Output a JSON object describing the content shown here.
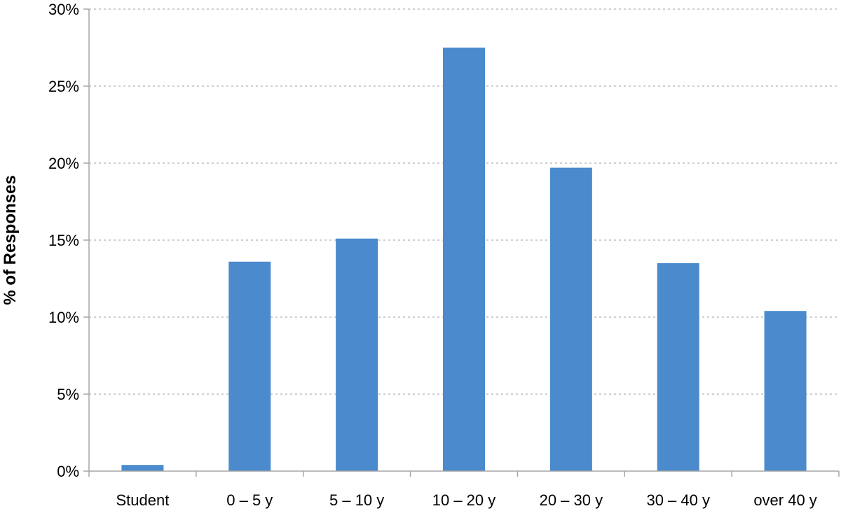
{
  "chart_data": {
    "type": "bar",
    "categories": [
      "Student",
      "0 – 5 y",
      "5 – 10 y",
      "10 – 20 y",
      "20 – 30 y",
      "30 – 40 y",
      "over 40 y"
    ],
    "values": [
      0.4,
      13.6,
      15.1,
      27.5,
      19.7,
      13.5,
      10.4
    ],
    "title": "",
    "xlabel": "",
    "ylabel": "% of Responses",
    "ylim": [
      0,
      30
    ],
    "yticks": [
      "0%",
      "5%",
      "10%",
      "15%",
      "20%",
      "25%",
      "30%"
    ],
    "grid": true,
    "legend": "none",
    "colors": {
      "bar": "#4a8acd",
      "grid": "#bfbfbf",
      "axis": "#a6a6a6"
    }
  }
}
